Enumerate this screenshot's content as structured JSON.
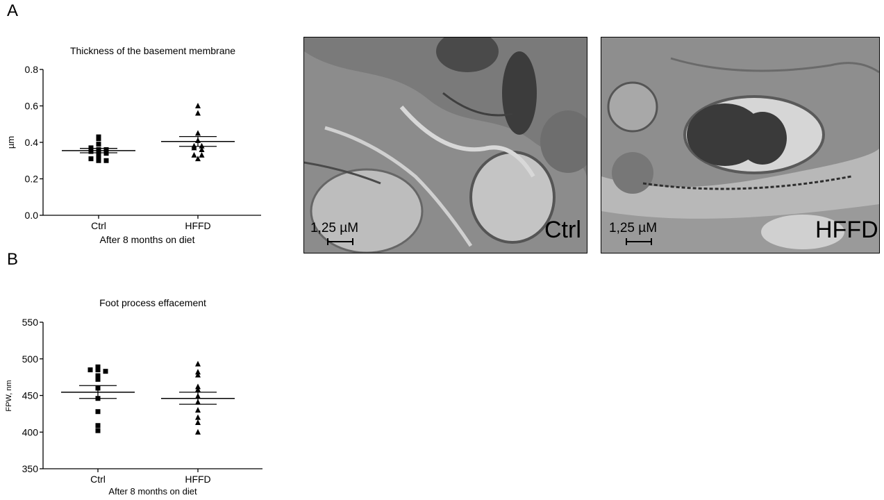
{
  "panels": {
    "a_label": "A",
    "b_label": "B"
  },
  "chart_data": [
    {
      "type": "scatter",
      "title": "Thickness of the basement membrane",
      "xlabel": "After 8 months on diet",
      "ylabel": "µm",
      "ylim": [
        0,
        0.8
      ],
      "yticks": [
        0.0,
        0.2,
        0.4,
        0.6,
        0.8
      ],
      "ytick_labels": [
        "0.0",
        "0.2",
        "0.4",
        "0.6",
        "0.8"
      ],
      "categories": [
        "Ctrl",
        "HFFD"
      ],
      "groups": [
        {
          "category": "Ctrl",
          "marker": "square",
          "values": [
            0.43,
            0.42,
            0.39,
            0.37,
            0.36,
            0.36,
            0.35,
            0.34,
            0.34,
            0.32,
            0.31,
            0.3,
            0.3
          ],
          "mean": 0.355,
          "sem_low": 0.343,
          "sem_high": 0.367
        },
        {
          "category": "HFFD",
          "marker": "triangle",
          "values": [
            0.6,
            0.56,
            0.45,
            0.41,
            0.38,
            0.38,
            0.37,
            0.36,
            0.33,
            0.33,
            0.31
          ],
          "mean": 0.405,
          "sem_low": 0.378,
          "sem_high": 0.432
        }
      ]
    },
    {
      "type": "scatter",
      "title": "Foot process effacement",
      "xlabel": "After 8 months on diet",
      "ylabel": "FPW, nm",
      "ylim": [
        350,
        550
      ],
      "yticks": [
        350,
        400,
        450,
        500,
        550
      ],
      "ytick_labels": [
        "350",
        "400",
        "450",
        "500",
        "550"
      ],
      "categories": [
        "Ctrl",
        "HFFD"
      ],
      "groups": [
        {
          "category": "Ctrl",
          "marker": "square",
          "values": [
            489,
            485,
            485,
            483,
            477,
            472,
            460,
            446,
            428,
            409,
            402
          ],
          "mean": 454.5,
          "sem_low": 446,
          "sem_high": 463.5
        },
        {
          "category": "HFFD",
          "marker": "triangle",
          "values": [
            493,
            482,
            478,
            462,
            458,
            449,
            441,
            430,
            420,
            413,
            400
          ],
          "mean": 446,
          "sem_low": 438,
          "sem_high": 454.5
        }
      ]
    }
  ],
  "micrographs": [
    {
      "condition": "Ctrl",
      "scale_label": "1,25 µM"
    },
    {
      "condition": "HFFD",
      "scale_label": "1,25 µM"
    }
  ]
}
